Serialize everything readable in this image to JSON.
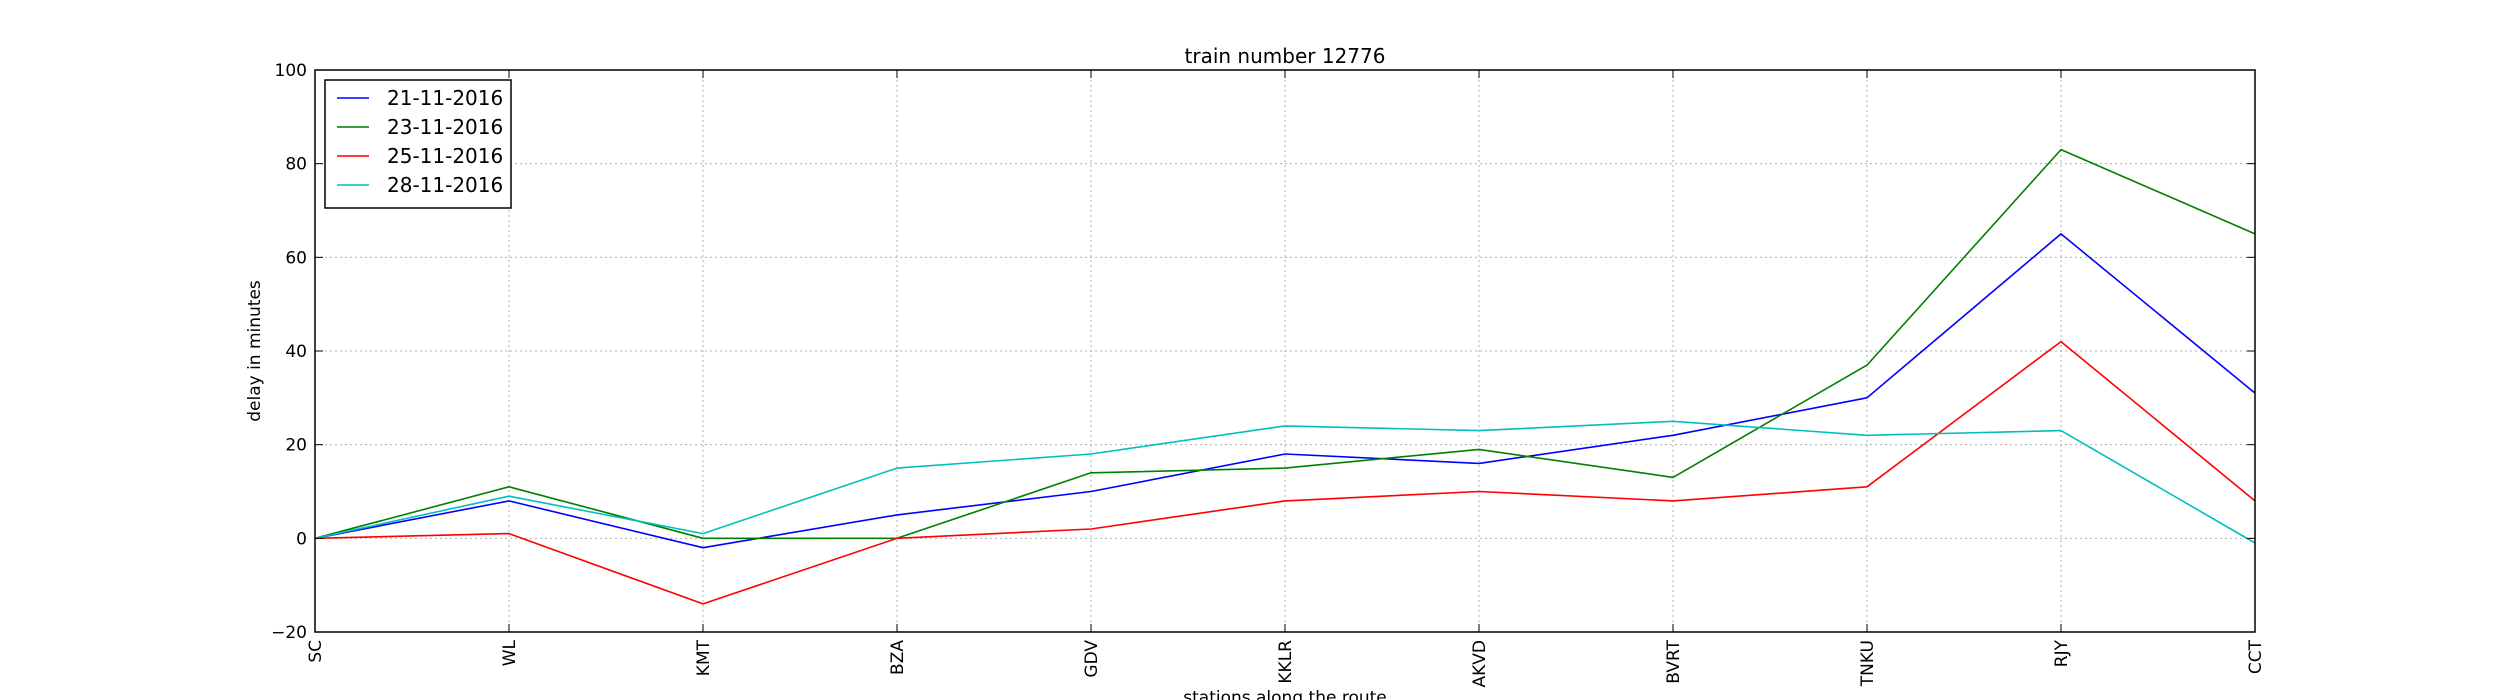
{
  "chart_data": {
    "type": "line",
    "title": "train number 12776",
    "xlabel": "stations along the route",
    "ylabel": "delay in minutes",
    "categories": [
      "SC",
      "WL",
      "KMT",
      "BZA",
      "GDV",
      "KKLR",
      "AKVD",
      "BVRT",
      "TNKU",
      "RJY",
      "CCT"
    ],
    "ylim": [
      -20,
      100
    ],
    "yticks": [
      -20,
      0,
      20,
      40,
      60,
      80,
      100
    ],
    "grid": true,
    "legend_position": "top-left",
    "series": [
      {
        "name": "21-11-2016",
        "color": "#0000ff",
        "values": [
          0,
          8,
          -2,
          5,
          10,
          18,
          16,
          22,
          30,
          65,
          31
        ]
      },
      {
        "name": "23-11-2016",
        "color": "#008000",
        "values": [
          0,
          11,
          0,
          0,
          14,
          15,
          19,
          13,
          37,
          83,
          65
        ]
      },
      {
        "name": "25-11-2016",
        "color": "#ff0000",
        "values": [
          0,
          1,
          -14,
          0,
          2,
          8,
          10,
          8,
          11,
          42,
          8
        ]
      },
      {
        "name": "28-11-2016",
        "color": "#00bfbf",
        "values": [
          0,
          9,
          1,
          15,
          18,
          24,
          23,
          25,
          22,
          23,
          -1
        ]
      }
    ]
  }
}
